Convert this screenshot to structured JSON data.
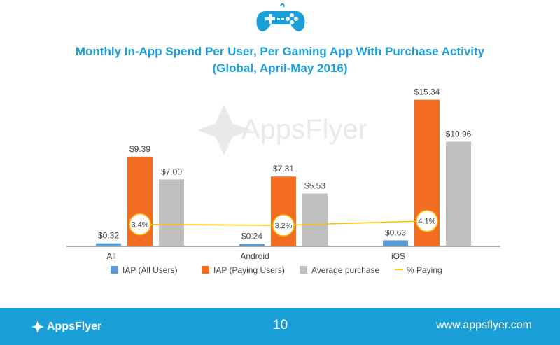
{
  "slide": {
    "footer": {
      "logo_text": "AppsFlyer",
      "page_number": "10",
      "url": "www.appsflyer.com"
    },
    "watermark": "AppsFlyer",
    "icon": "gamepad-icon",
    "colors": {
      "accent": "#1a9fd9",
      "iap_all": "#5b9bd5",
      "iap_paying": "#f26d21",
      "avg_purchase": "#bfbfbf",
      "pct_paying": "#ffc000"
    }
  },
  "chart_data": {
    "type": "bar",
    "title": "Monthly In-App Spend Per User, Per Gaming App With Purchase Activity",
    "subtitle": "(Global, April-May 2016)",
    "xlabel": "",
    "ylabel": "",
    "ylim": [
      0,
      17
    ],
    "categories": [
      "All",
      "Android",
      "iOS"
    ],
    "series": [
      {
        "name": "IAP (All Users)",
        "type": "bar",
        "values": [
          0.32,
          0.24,
          0.63
        ],
        "labels": [
          "$0.32",
          "$0.24",
          "$0.63"
        ]
      },
      {
        "name": "IAP (Paying Users)",
        "type": "bar",
        "values": [
          9.39,
          7.31,
          15.34
        ],
        "labels": [
          "$9.39",
          "$7.31",
          "$15.34"
        ]
      },
      {
        "name": "Average purchase",
        "type": "bar",
        "values": [
          7.0,
          5.53,
          10.96
        ],
        "labels": [
          "$7.00",
          "$5.53",
          "$10.96"
        ]
      },
      {
        "name": "% Paying",
        "type": "line",
        "values": [
          3.4,
          3.2,
          4.1
        ],
        "labels": [
          "3.4%",
          "3.2%",
          "4.1%"
        ],
        "unit": "%"
      }
    ],
    "legend": "bottom",
    "grid": false
  }
}
